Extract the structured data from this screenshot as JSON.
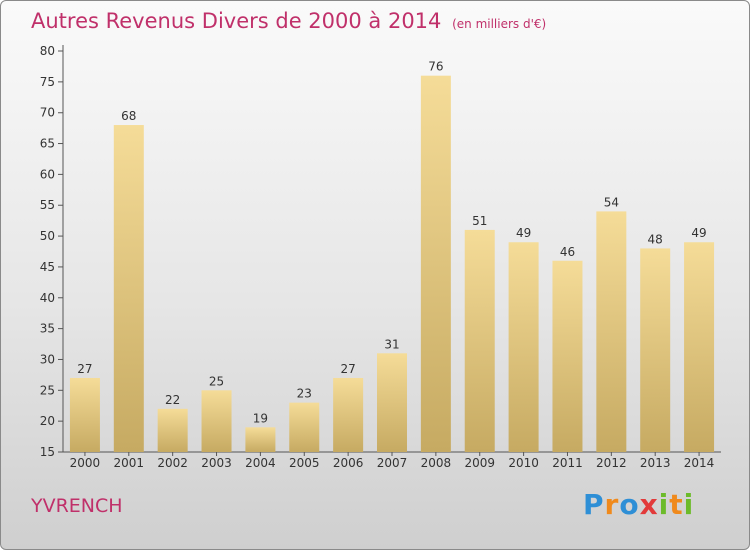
{
  "chart_data": {
    "type": "bar",
    "title": "Autres Revenus Divers de 2000 à 2014",
    "subtitle": "(en milliers d'€)",
    "categories": [
      "2000",
      "2001",
      "2002",
      "2003",
      "2004",
      "2005",
      "2006",
      "2007",
      "2008",
      "2009",
      "2010",
      "2011",
      "2012",
      "2013",
      "2014"
    ],
    "values": [
      27,
      68,
      22,
      25,
      19,
      23,
      27,
      31,
      76,
      51,
      49,
      46,
      54,
      48,
      49
    ],
    "ylim": [
      15,
      80
    ],
    "yticks": [
      15,
      20,
      25,
      30,
      35,
      40,
      45,
      50,
      55,
      60,
      65,
      70,
      75,
      80
    ],
    "grid": false,
    "bar_color_light": "#f5dc98",
    "bar_color_dark": "#c6aa62"
  },
  "commune": "YVRENCH",
  "logo": {
    "letters": [
      "P",
      "r",
      "o",
      "x",
      "i",
      "t",
      "i"
    ],
    "colors": [
      "#2e8fd6",
      "#f08a1c",
      "#2e8fd6",
      "#e23a3a",
      "#6cbb2a",
      "#f08a1c",
      "#6cbb2a"
    ]
  }
}
